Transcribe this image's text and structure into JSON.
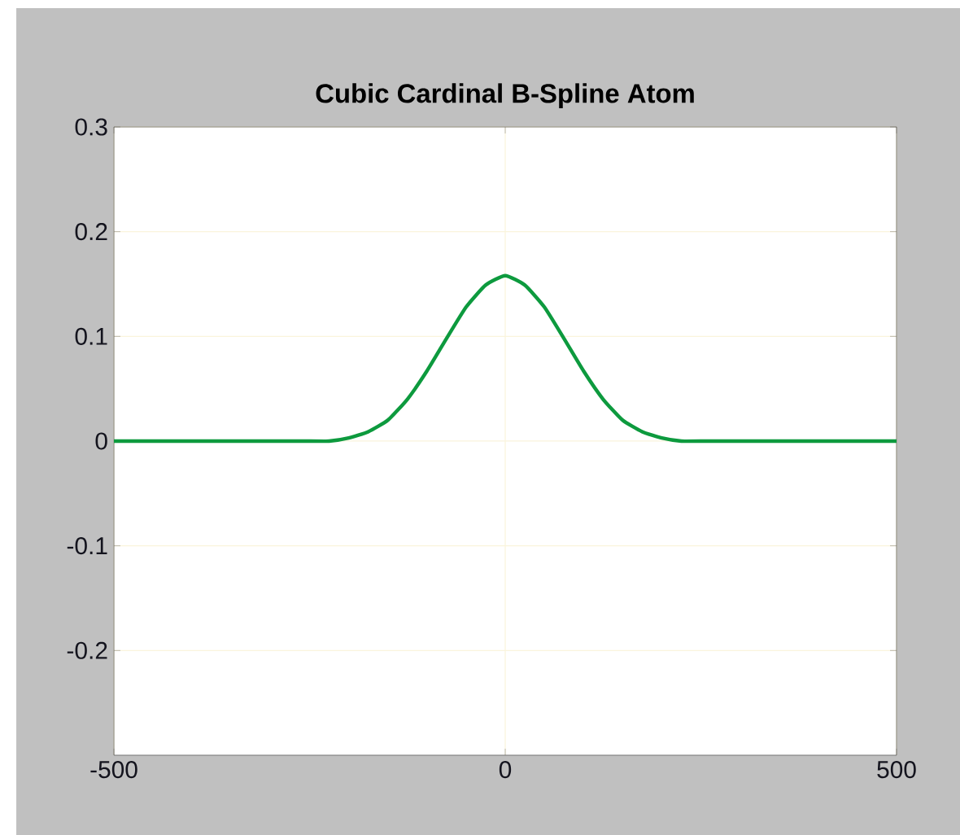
{
  "chart_data": {
    "type": "line",
    "title": "Cubic Cardinal B-Spline Atom",
    "x": [
      -500,
      -250,
      -225,
      -200,
      -175,
      -150,
      -125,
      -100,
      -75,
      -50,
      -25,
      0,
      25,
      50,
      75,
      100,
      125,
      150,
      175,
      200,
      225,
      250,
      500
    ],
    "series": [
      {
        "color": "#0d9a3e",
        "values": [
          0,
          0,
          0,
          0.003,
          0.009,
          0.02,
          0.04,
          0.067,
          0.098,
          0.128,
          0.149,
          0.158,
          0.149,
          0.128,
          0.098,
          0.067,
          0.04,
          0.02,
          0.009,
          0.003,
          0,
          0,
          0
        ]
      }
    ],
    "xlim": [
      -500,
      500
    ],
    "ylim": [
      -0.3,
      0.3
    ],
    "xticks": [
      -500,
      0,
      500
    ],
    "yticks": [
      -0.2,
      -0.1,
      0,
      0.1,
      0.2,
      0.3
    ],
    "grid": true,
    "line_style": "solid",
    "marker": "none"
  }
}
